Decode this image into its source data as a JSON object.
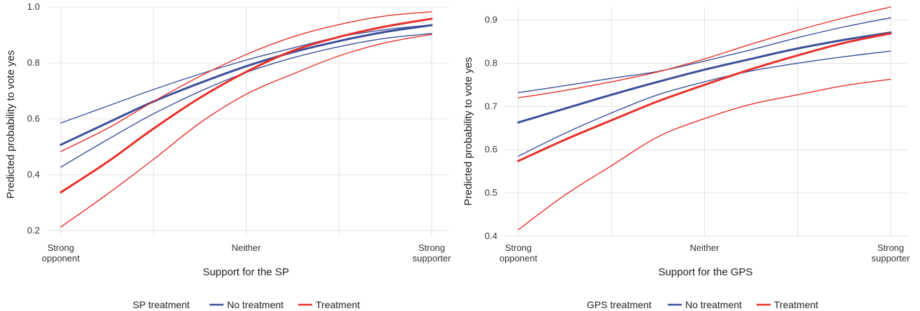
{
  "chart_data": [
    {
      "type": "line",
      "xlabel": "Support for the SP",
      "ylabel": "Predicted probability to vote yes",
      "x_ticks": [
        {
          "x": 1,
          "label": [
            "Strong",
            "opponent"
          ]
        },
        {
          "x": 3,
          "label": [
            "Neither"
          ]
        },
        {
          "x": 5,
          "label": [
            "Strong",
            "supporter"
          ]
        }
      ],
      "xlim": [
        1,
        5
      ],
      "ylim": [
        0.18,
        1.0
      ],
      "y_ticks": [
        0.2,
        0.4,
        0.6,
        0.8,
        1.0
      ],
      "y_tick_labels": [
        "0.2",
        "0.4",
        "0.6",
        "0.8",
        "1.0"
      ],
      "grid": true,
      "x": [
        1,
        1.5,
        2,
        2.5,
        3,
        3.5,
        4,
        4.5,
        5
      ],
      "series": [
        {
          "name": "No treatment",
          "color": "#3b4f9a",
          "role": "estimate",
          "values": [
            0.507,
            0.585,
            0.662,
            0.728,
            0.788,
            0.838,
            0.878,
            0.911,
            0.935
          ]
        },
        {
          "color": "#3b4f9a",
          "role": "upper",
          "values": [
            0.585,
            0.645,
            0.705,
            0.76,
            0.81,
            0.853,
            0.893,
            0.919,
            0.936
          ]
        },
        {
          "color": "#3b4f9a",
          "role": "lower",
          "values": [
            0.427,
            0.525,
            0.618,
            0.698,
            0.766,
            0.818,
            0.858,
            0.888,
            0.905
          ]
        },
        {
          "name": "Treatment",
          "color": "#e8302a",
          "role": "estimate",
          "values": [
            0.337,
            0.445,
            0.565,
            0.675,
            0.768,
            0.843,
            0.893,
            0.93,
            0.958
          ]
        },
        {
          "color": "#e8302a",
          "role": "upper",
          "values": [
            0.483,
            0.565,
            0.662,
            0.752,
            0.83,
            0.893,
            0.937,
            0.968,
            0.983
          ]
        },
        {
          "color": "#e8302a",
          "role": "lower",
          "values": [
            0.213,
            0.33,
            0.455,
            0.585,
            0.688,
            0.76,
            0.825,
            0.872,
            0.902
          ]
        }
      ],
      "legend": {
        "title": "SP treatment",
        "position": "bottom",
        "items": [
          "No treatment",
          "Treatment"
        ]
      }
    },
    {
      "type": "line",
      "xlabel": "Support for the GPS",
      "ylabel": "Predicted probability to vote yes",
      "x_ticks": [
        {
          "x": 1,
          "label": [
            "Strong",
            "opponent"
          ]
        },
        {
          "x": 3,
          "label": [
            "Neither"
          ]
        },
        {
          "x": 5,
          "label": [
            "Strong",
            "supporter"
          ]
        }
      ],
      "xlim": [
        1,
        5
      ],
      "ylim": [
        0.4,
        0.93
      ],
      "y_ticks": [
        0.4,
        0.5,
        0.6,
        0.7,
        0.8,
        0.9
      ],
      "y_tick_labels": [
        "0.4",
        "0.5",
        "0.6",
        "0.7",
        "0.8",
        "0.9"
      ],
      "grid": true,
      "x": [
        1,
        1.5,
        2,
        2.5,
        3,
        3.5,
        4,
        4.5,
        5
      ],
      "series": [
        {
          "name": "No treatment",
          "color": "#3b4f9a",
          "role": "estimate",
          "values": [
            0.663,
            0.695,
            0.727,
            0.757,
            0.785,
            0.81,
            0.834,
            0.854,
            0.871
          ]
        },
        {
          "color": "#3b4f9a",
          "role": "upper",
          "values": [
            0.732,
            0.748,
            0.765,
            0.781,
            0.805,
            0.831,
            0.859,
            0.884,
            0.905
          ]
        },
        {
          "color": "#3b4f9a",
          "role": "lower",
          "values": [
            0.585,
            0.638,
            0.685,
            0.727,
            0.757,
            0.782,
            0.8,
            0.815,
            0.828
          ]
        },
        {
          "name": "Treatment",
          "color": "#e8302a",
          "role": "estimate",
          "values": [
            0.574,
            0.623,
            0.668,
            0.712,
            0.75,
            0.786,
            0.818,
            0.847,
            0.869
          ]
        },
        {
          "color": "#e8302a",
          "role": "upper",
          "values": [
            0.72,
            0.737,
            0.757,
            0.78,
            0.81,
            0.844,
            0.876,
            0.905,
            0.93
          ]
        },
        {
          "color": "#e8302a",
          "role": "lower",
          "values": [
            0.415,
            0.495,
            0.563,
            0.63,
            0.672,
            0.705,
            0.727,
            0.748,
            0.763
          ]
        }
      ],
      "legend": {
        "title": "GPS treatment",
        "position": "bottom",
        "items": [
          "No treatment",
          "Treatment"
        ]
      }
    }
  ]
}
